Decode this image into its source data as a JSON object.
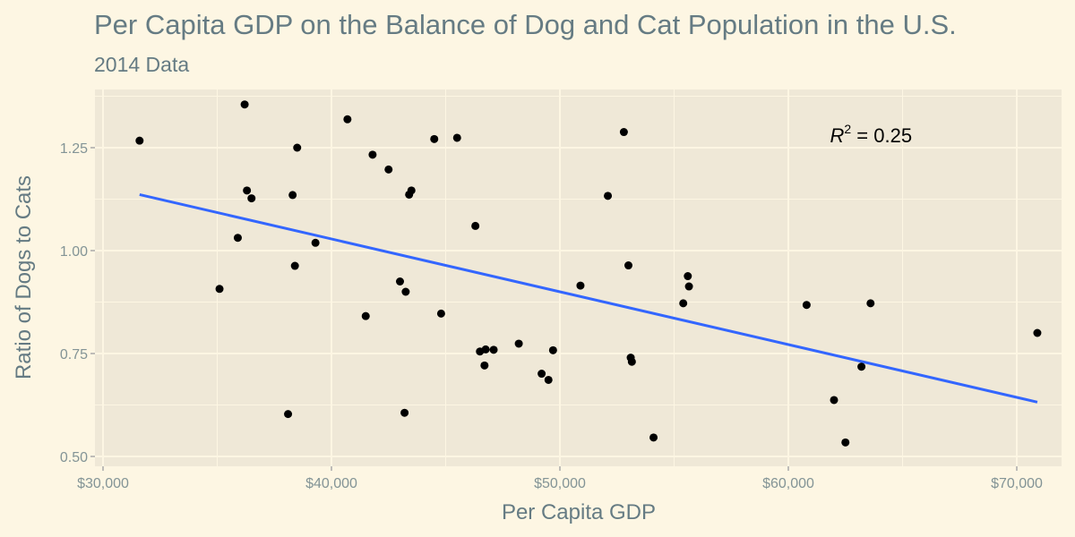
{
  "chart_data": {
    "type": "scatter",
    "title": "Per Capita GDP on the Balance of Dog and Cat Population in the U.S.",
    "subtitle": "2014 Data",
    "xlabel": "Per Capita GDP",
    "ylabel": "Ratio of Dogs to Cats",
    "xlim": [
      30000,
      71000
    ],
    "ylim": [
      0.5,
      1.36
    ],
    "xticks": [
      30000,
      40000,
      50000,
      60000,
      70000
    ],
    "xtick_labels": [
      "$30,000",
      "$40,000",
      "$50,000",
      "$60,000",
      "$70,000"
    ],
    "yticks": [
      0.5,
      0.75,
      1.0,
      1.25
    ],
    "ytick_labels": [
      "0.50",
      "0.75",
      "1.00",
      "1.25"
    ],
    "grid": true,
    "annotation": {
      "base": "R",
      "sup": "2",
      "rest": " = 0.25",
      "x": 63000,
      "y": 1.28
    },
    "trend_line": {
      "x": [
        31600,
        70900
      ],
      "y": [
        1.136,
        0.632
      ]
    },
    "points": [
      {
        "x": 31600,
        "y": 1.267
      },
      {
        "x": 35100,
        "y": 0.907
      },
      {
        "x": 35900,
        "y": 1.031
      },
      {
        "x": 36200,
        "y": 1.355
      },
      {
        "x": 36300,
        "y": 1.146
      },
      {
        "x": 36500,
        "y": 1.127
      },
      {
        "x": 38100,
        "y": 0.603
      },
      {
        "x": 38300,
        "y": 1.135
      },
      {
        "x": 38400,
        "y": 0.963
      },
      {
        "x": 38500,
        "y": 1.25
      },
      {
        "x": 39300,
        "y": 1.019
      },
      {
        "x": 40700,
        "y": 1.319
      },
      {
        "x": 41500,
        "y": 0.841
      },
      {
        "x": 41800,
        "y": 1.233
      },
      {
        "x": 42500,
        "y": 1.197
      },
      {
        "x": 43000,
        "y": 0.925
      },
      {
        "x": 43200,
        "y": 0.606
      },
      {
        "x": 43250,
        "y": 0.9
      },
      {
        "x": 43400,
        "y": 1.136
      },
      {
        "x": 43500,
        "y": 1.146
      },
      {
        "x": 44500,
        "y": 1.271
      },
      {
        "x": 44800,
        "y": 0.847
      },
      {
        "x": 45500,
        "y": 1.274
      },
      {
        "x": 46300,
        "y": 1.06
      },
      {
        "x": 46500,
        "y": 0.755
      },
      {
        "x": 46700,
        "y": 0.721
      },
      {
        "x": 46750,
        "y": 0.76
      },
      {
        "x": 47100,
        "y": 0.759
      },
      {
        "x": 48200,
        "y": 0.774
      },
      {
        "x": 49200,
        "y": 0.701
      },
      {
        "x": 49500,
        "y": 0.686
      },
      {
        "x": 49700,
        "y": 0.758
      },
      {
        "x": 50900,
        "y": 0.915
      },
      {
        "x": 52100,
        "y": 1.133
      },
      {
        "x": 52800,
        "y": 1.288
      },
      {
        "x": 53000,
        "y": 0.964
      },
      {
        "x": 53100,
        "y": 0.74
      },
      {
        "x": 53150,
        "y": 0.73
      },
      {
        "x": 54100,
        "y": 0.546
      },
      {
        "x": 55400,
        "y": 0.872
      },
      {
        "x": 55600,
        "y": 0.938
      },
      {
        "x": 55650,
        "y": 0.913
      },
      {
        "x": 60800,
        "y": 0.868
      },
      {
        "x": 62000,
        "y": 0.637
      },
      {
        "x": 62500,
        "y": 0.534
      },
      {
        "x": 63200,
        "y": 0.718
      },
      {
        "x": 63600,
        "y": 0.872
      },
      {
        "x": 70900,
        "y": 0.8
      }
    ]
  }
}
